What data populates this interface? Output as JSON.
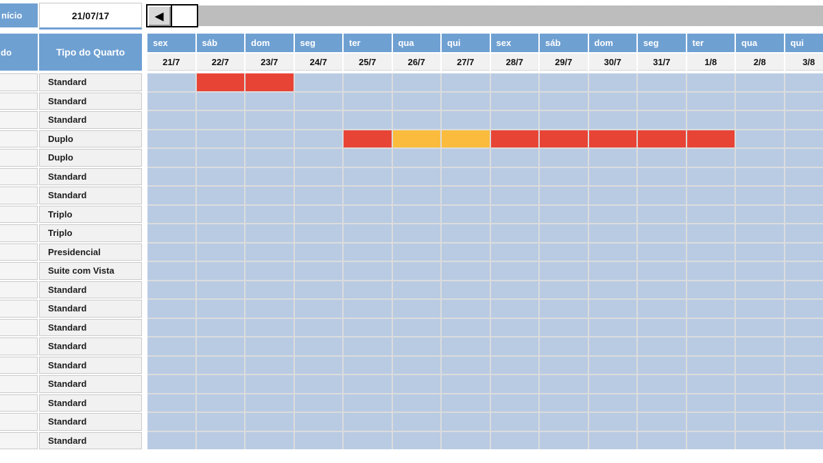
{
  "header": {
    "start_label_partial": "nício",
    "start_date": "21/07/17",
    "col_a_header_partial": "do",
    "room_type_header": "Tipo do Quarto"
  },
  "scrollbar": {
    "left_arrow_icon": "◀"
  },
  "colors": {
    "header_blue": "#6FA0D2",
    "cell_blue": "#B9CBE3",
    "occupied": "#E84436",
    "pending": "#FBBC3D"
  },
  "calendar": {
    "days": [
      {
        "weekday": "sex",
        "date": "21/7"
      },
      {
        "weekday": "sáb",
        "date": "22/7"
      },
      {
        "weekday": "dom",
        "date": "23/7"
      },
      {
        "weekday": "seg",
        "date": "24/7"
      },
      {
        "weekday": "ter",
        "date": "25/7"
      },
      {
        "weekday": "qua",
        "date": "26/7"
      },
      {
        "weekday": "qui",
        "date": "27/7"
      },
      {
        "weekday": "sex",
        "date": "28/7"
      },
      {
        "weekday": "sáb",
        "date": "29/7"
      },
      {
        "weekday": "dom",
        "date": "30/7"
      },
      {
        "weekday": "seg",
        "date": "31/7"
      },
      {
        "weekday": "ter",
        "date": "1/8"
      },
      {
        "weekday": "qua",
        "date": "2/8"
      },
      {
        "weekday": "qui",
        "date": "3/8"
      }
    ],
    "rows": [
      {
        "room_type": "Standard",
        "cells": [
          "",
          "occupied",
          "occupied",
          "",
          "",
          "",
          "",
          "",
          "",
          "",
          "",
          "",
          "",
          ""
        ]
      },
      {
        "room_type": "Standard",
        "cells": [
          "",
          "",
          "",
          "",
          "",
          "",
          "",
          "",
          "",
          "",
          "",
          "",
          "",
          ""
        ]
      },
      {
        "room_type": "Standard",
        "cells": [
          "",
          "",
          "",
          "",
          "",
          "",
          "",
          "",
          "",
          "",
          "",
          "",
          "",
          ""
        ]
      },
      {
        "room_type": "Duplo",
        "cells": [
          "",
          "",
          "",
          "",
          "occupied",
          "pending",
          "pending",
          "occupied",
          "occupied",
          "occupied",
          "occupied",
          "occupied",
          "",
          ""
        ]
      },
      {
        "room_type": "Duplo",
        "cells": [
          "",
          "",
          "",
          "",
          "",
          "",
          "",
          "",
          "",
          "",
          "",
          "",
          "",
          ""
        ]
      },
      {
        "room_type": "Standard",
        "cells": [
          "",
          "",
          "",
          "",
          "",
          "",
          "",
          "",
          "",
          "",
          "",
          "",
          "",
          ""
        ]
      },
      {
        "room_type": "Standard",
        "cells": [
          "",
          "",
          "",
          "",
          "",
          "",
          "",
          "",
          "",
          "",
          "",
          "",
          "",
          ""
        ]
      },
      {
        "room_type": "Triplo",
        "cells": [
          "",
          "",
          "",
          "",
          "",
          "",
          "",
          "",
          "",
          "",
          "",
          "",
          "",
          ""
        ]
      },
      {
        "room_type": "Triplo",
        "cells": [
          "",
          "",
          "",
          "",
          "",
          "",
          "",
          "",
          "",
          "",
          "",
          "",
          "",
          ""
        ]
      },
      {
        "room_type": "Presidencial",
        "cells": [
          "",
          "",
          "",
          "",
          "",
          "",
          "",
          "",
          "",
          "",
          "",
          "",
          "",
          ""
        ]
      },
      {
        "room_type": "Suite com Vista",
        "cells": [
          "",
          "",
          "",
          "",
          "",
          "",
          "",
          "",
          "",
          "",
          "",
          "",
          "",
          ""
        ]
      },
      {
        "room_type": "Standard",
        "cells": [
          "",
          "",
          "",
          "",
          "",
          "",
          "",
          "",
          "",
          "",
          "",
          "",
          "",
          ""
        ]
      },
      {
        "room_type": "Standard",
        "cells": [
          "",
          "",
          "",
          "",
          "",
          "",
          "",
          "",
          "",
          "",
          "",
          "",
          "",
          ""
        ]
      },
      {
        "room_type": "Standard",
        "cells": [
          "",
          "",
          "",
          "",
          "",
          "",
          "",
          "",
          "",
          "",
          "",
          "",
          "",
          ""
        ]
      },
      {
        "room_type": "Standard",
        "cells": [
          "",
          "",
          "",
          "",
          "",
          "",
          "",
          "",
          "",
          "",
          "",
          "",
          "",
          ""
        ]
      },
      {
        "room_type": "Standard",
        "cells": [
          "",
          "",
          "",
          "",
          "",
          "",
          "",
          "",
          "",
          "",
          "",
          "",
          "",
          ""
        ]
      },
      {
        "room_type": "Standard",
        "cells": [
          "",
          "",
          "",
          "",
          "",
          "",
          "",
          "",
          "",
          "",
          "",
          "",
          "",
          ""
        ]
      },
      {
        "room_type": "Standard",
        "cells": [
          "",
          "",
          "",
          "",
          "",
          "",
          "",
          "",
          "",
          "",
          "",
          "",
          "",
          ""
        ]
      },
      {
        "room_type": "Standard",
        "cells": [
          "",
          "",
          "",
          "",
          "",
          "",
          "",
          "",
          "",
          "",
          "",
          "",
          "",
          ""
        ]
      },
      {
        "room_type": "Standard",
        "cells": [
          "",
          "",
          "",
          "",
          "",
          "",
          "",
          "",
          "",
          "",
          "",
          "",
          "",
          ""
        ]
      }
    ]
  }
}
